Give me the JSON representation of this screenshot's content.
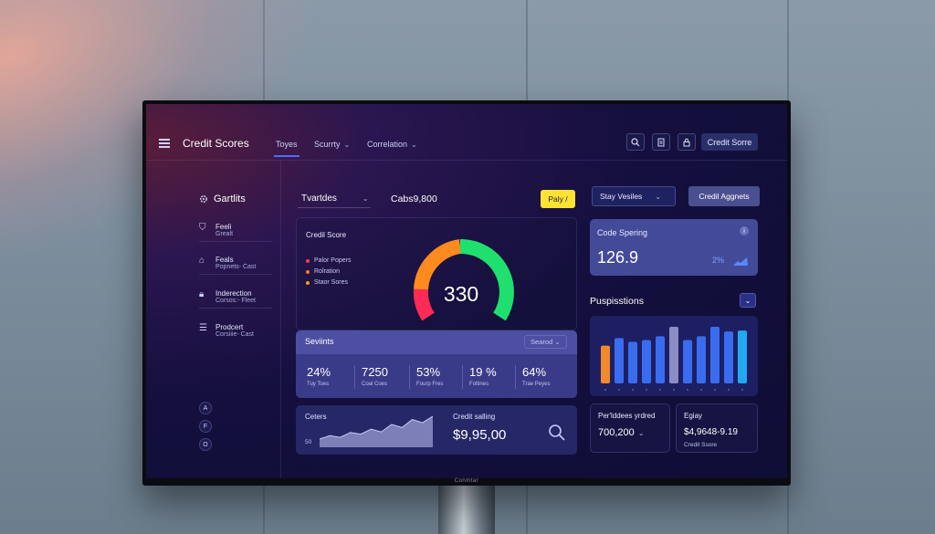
{
  "topbar": {
    "title": "Credit Scores",
    "nav": [
      {
        "label": "Toyes",
        "active": true,
        "dropdown": false
      },
      {
        "label": "Scurrty",
        "active": false,
        "dropdown": true
      },
      {
        "label": "Correlation",
        "active": false,
        "dropdown": true
      }
    ],
    "icons": [
      "search-icon",
      "copy-icon",
      "lock-icon"
    ],
    "sign_button": "Credit Sorre"
  },
  "sidebar": {
    "heading": "Gartlits",
    "items": [
      {
        "icon": "shield-icon",
        "title": "Feeli",
        "subtitle": "Grealt"
      },
      {
        "icon": "home-icon",
        "title": "Feals",
        "subtitle": "Popnets- Cast"
      },
      {
        "icon": "lock-icon",
        "title": "Inderection",
        "subtitle": "Corsos:- Fleet"
      },
      {
        "icon": "database-icon",
        "title": "Prodcert",
        "subtitle": "Corsiiie- Cast"
      }
    ],
    "mini_buttons": [
      "A",
      "F",
      "O"
    ]
  },
  "main": {
    "dropdown_label": "Tvartdes",
    "balance": "Cabs9,800",
    "pay_button": "Paly /",
    "score_card": {
      "title": "Credil Score",
      "legend": [
        {
          "label": "Palor Popers",
          "color": "#ff3b4e"
        },
        {
          "label": "Rolration",
          "color": "#ff7a1a"
        },
        {
          "label": "Staor Sores",
          "color": "#ff9a1a"
        }
      ],
      "gauge_value": "330",
      "gauge_colors": {
        "low": "#ff2b55",
        "mid": "#ff8a1f",
        "high": "#1fe06e"
      }
    },
    "stats": {
      "title": "Seviints",
      "dropdown": "Searod",
      "items": [
        {
          "value": "24%",
          "label": "Tuy Toes"
        },
        {
          "value": "7250",
          "label": "Coal Coes"
        },
        {
          "value": "53%",
          "label": "Fourp Fres"
        },
        {
          "value": "19 %",
          "label": "Foltines"
        },
        {
          "value": "64%",
          "label": "Trae Peyes"
        }
      ]
    },
    "bottom_left": {
      "title": "Ceters",
      "axis_label": "50",
      "credit_label": "Credit salling",
      "credit_value": "$9,95,00",
      "area_series": [
        2,
        3,
        2.5,
        4,
        3.5,
        5,
        4.2,
        6.5,
        5.5,
        8,
        7,
        9
      ]
    }
  },
  "right": {
    "dropdown": "Stay Vesiles",
    "button": "Credil Aggnets",
    "kpi": {
      "title": "Code Spering",
      "value": "126.9",
      "percent": "2%"
    },
    "panel_title": "Puspisstions",
    "bar_series": [
      {
        "value": 40,
        "color": "#f08a2a"
      },
      {
        "value": 48,
        "color": "#3a6cf0"
      },
      {
        "value": 44,
        "color": "#3a6cf0"
      },
      {
        "value": 46,
        "color": "#3a6cf0"
      },
      {
        "value": 50,
        "color": "#3a6cf0"
      },
      {
        "value": 60,
        "color": "#8a8cc6"
      },
      {
        "value": 46,
        "color": "#3a6cf0"
      },
      {
        "value": 50,
        "color": "#3a6cf0"
      },
      {
        "value": 60,
        "color": "#3a6cf0"
      },
      {
        "value": 55,
        "color": "#3a6cf0"
      },
      {
        "value": 56,
        "color": "#22a8f0"
      }
    ],
    "metric1": {
      "title": "Per'lddees yrdred",
      "value": "700,200"
    },
    "metric2": {
      "title": "Egiay",
      "value": "$4,9648-9.19",
      "subtitle": "Credit Ssore"
    }
  },
  "tv_brand": "Conmtar"
}
